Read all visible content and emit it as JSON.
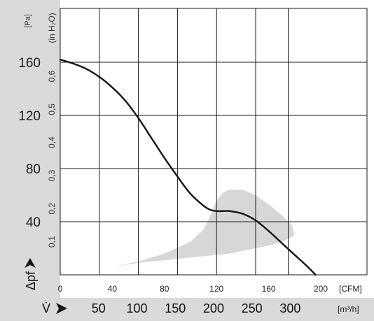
{
  "chart_data": {
    "type": "line",
    "title": "",
    "x": [
      0,
      10,
      20,
      30,
      40,
      50,
      60,
      70,
      80,
      90,
      100,
      110,
      115,
      120,
      125,
      130,
      140,
      150,
      160,
      170,
      180,
      190,
      196
    ],
    "series": [
      {
        "values": [
          162,
          159,
          155,
          149,
          141,
          131,
          118,
          103,
          88,
          74,
          61,
          52,
          49,
          48,
          48,
          48,
          46,
          41,
          33,
          24,
          15,
          6,
          0
        ]
      }
    ],
    "shaded_region": {
      "x": [
        0,
        20,
        40,
        60,
        80,
        100,
        110,
        115,
        120,
        125,
        130,
        140,
        150,
        160,
        170,
        178,
        180,
        175,
        170,
        160,
        150,
        140,
        130,
        120,
        110,
        100,
        80,
        60,
        40,
        20,
        0
      ],
      "y": [
        0,
        3,
        6,
        10,
        16,
        25,
        34,
        44,
        56,
        62,
        64,
        64,
        60,
        53,
        45,
        37,
        30,
        27,
        25,
        22,
        20,
        18,
        16,
        15,
        14,
        13,
        11,
        9,
        6,
        3,
        0
      ]
    },
    "xlabel": "[CFM]",
    "ylabel": "[Pa]",
    "xlim": [
      0,
      230
    ],
    "ylim": [
      0,
      195
    ],
    "grid": true,
    "x_ticks": [
      "0",
      "40",
      "80",
      "120",
      "160",
      "200"
    ],
    "y_ticks": [
      "40",
      "80",
      "120",
      "160"
    ],
    "secondary_y": {
      "label": "(in H₂O)",
      "ticks": [
        "0,1",
        "0,2",
        "0,3",
        "0,4",
        "0,5",
        "0,6"
      ]
    },
    "secondary_x": {
      "symbol": "V̇",
      "label": "[m³/h]",
      "ticks": [
        "50",
        "100",
        "150",
        "200",
        "250",
        "300"
      ]
    },
    "y_symbol": "Δpf",
    "colors": {
      "band": "#d9dadb",
      "curve": "#151515",
      "region": "#d7d7d7",
      "grid": "#1a1a1a"
    }
  }
}
